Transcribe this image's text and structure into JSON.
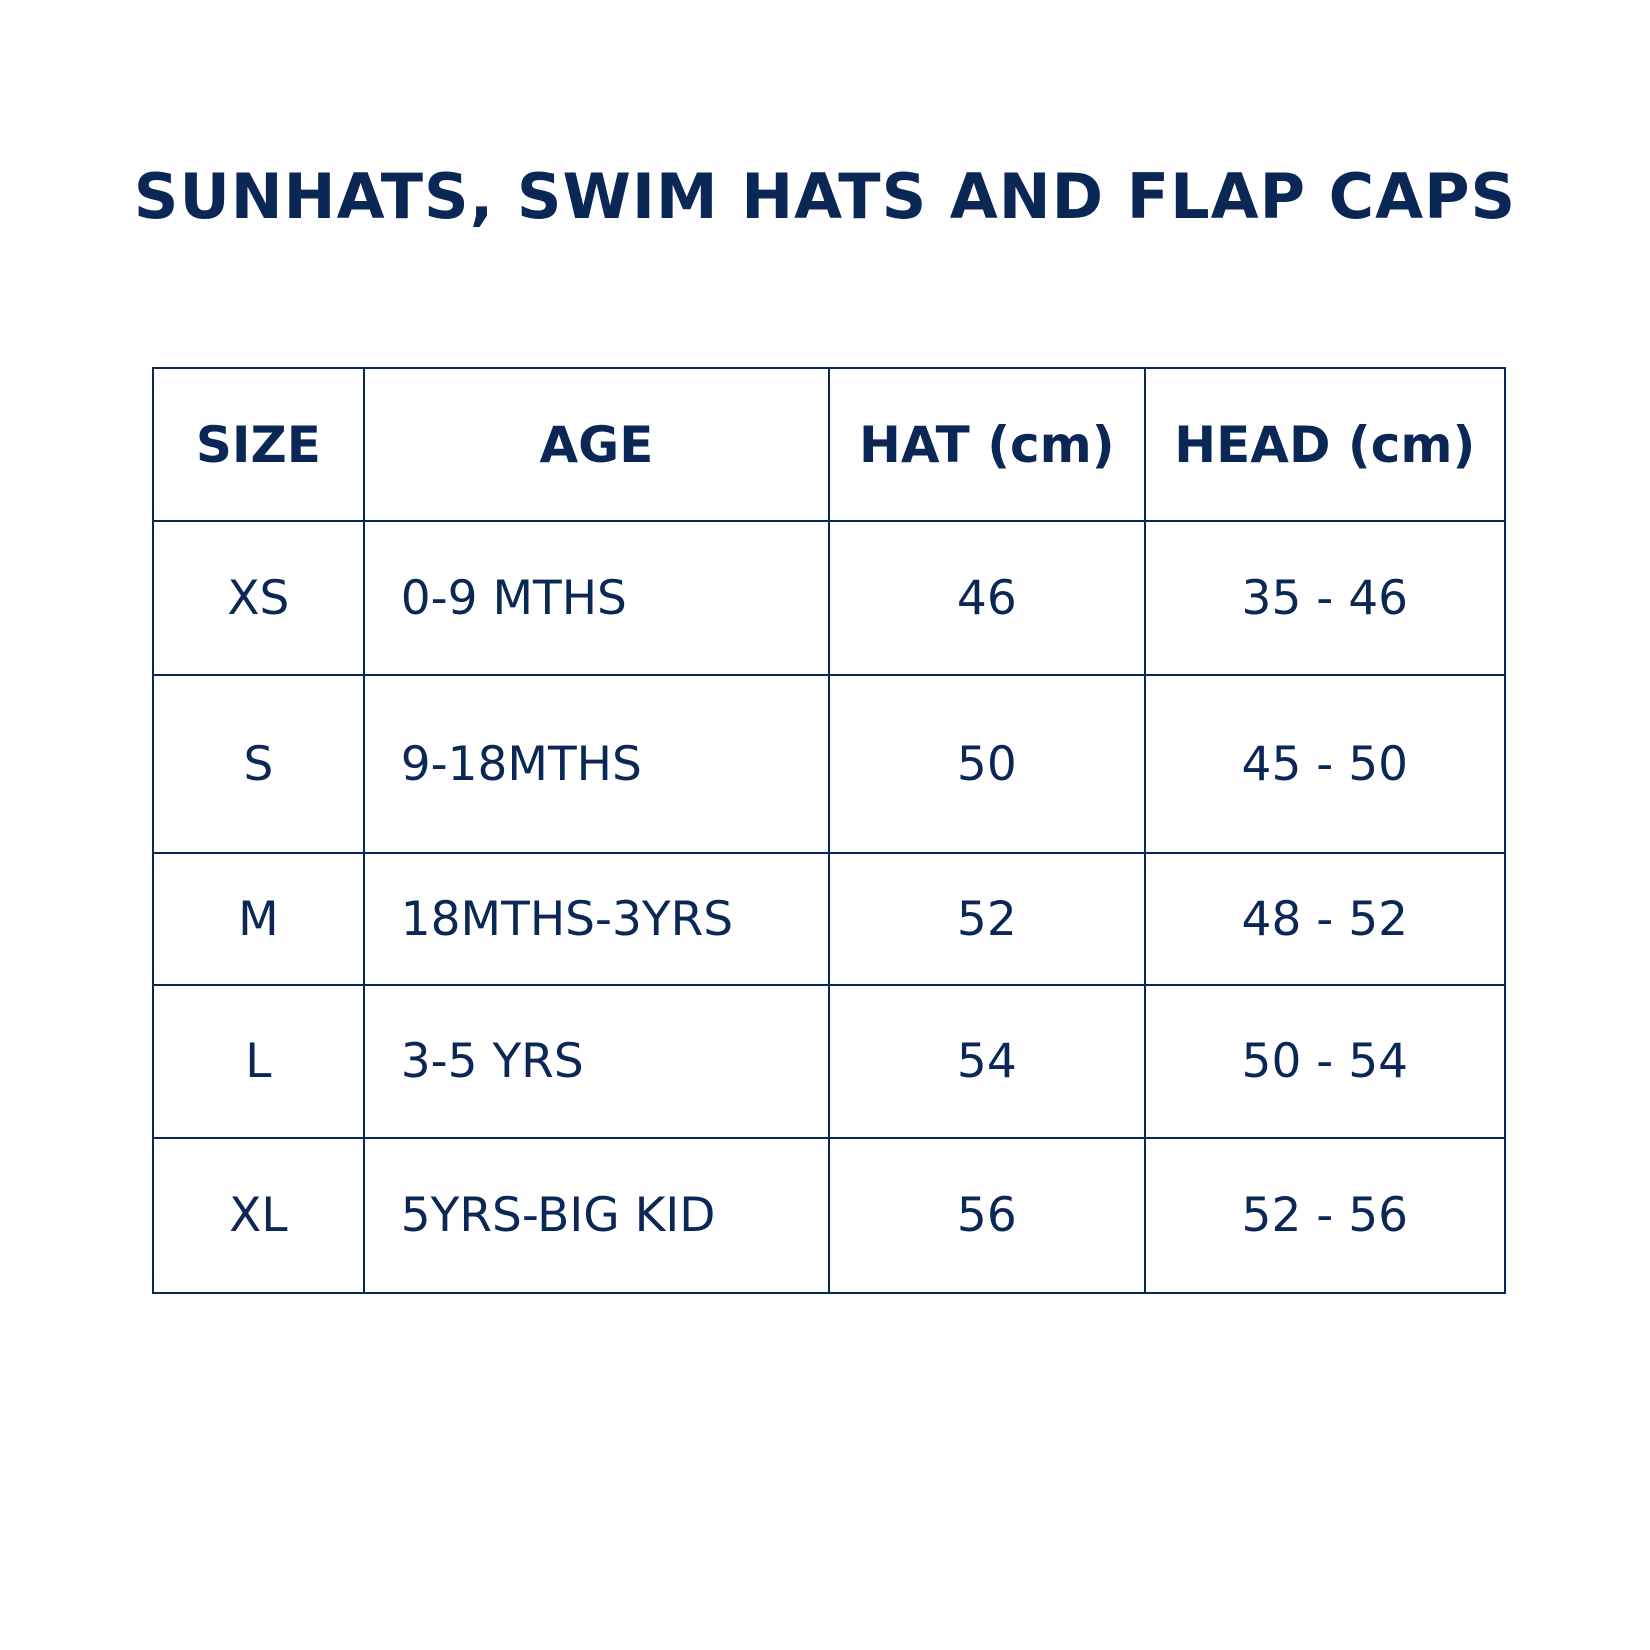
{
  "title": "SUNHATS, SWIM HATS AND FLAP CAPS",
  "colors": {
    "text": "#0b2756",
    "border": "#0b2756",
    "background": "#ffffff"
  },
  "table": {
    "headers": [
      "SIZE",
      "AGE",
      "HAT (cm)",
      "HEAD (cm)"
    ],
    "rows": [
      [
        "XS",
        "0-9 MTHS",
        "46",
        "35 - 46"
      ],
      [
        "S",
        "9-18MTHS",
        "50",
        "45 - 50"
      ],
      [
        "M",
        "18MTHS-3YRS",
        "52",
        "48 - 52"
      ],
      [
        "L",
        "3-5 YRS",
        "54",
        "50 - 54"
      ],
      [
        "XL",
        "5YRS-BIG KID",
        "56",
        "52 - 56"
      ]
    ]
  }
}
